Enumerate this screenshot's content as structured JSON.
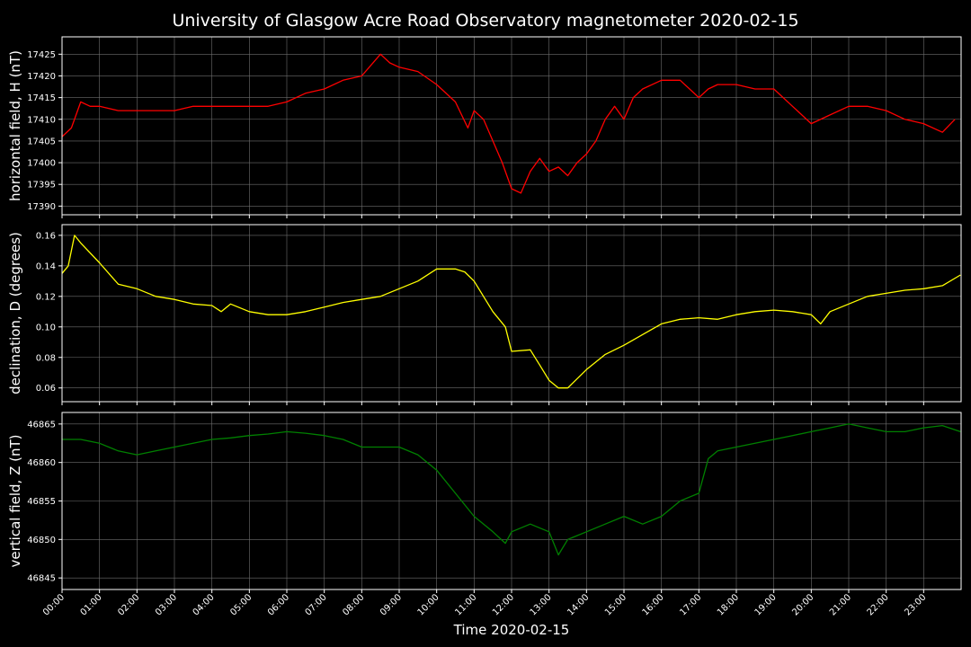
{
  "chart_data": {
    "title": "University of Glasgow Acre Road Observatory magnetometer 2020-02-15",
    "xlabel": "Time 2020-02-15",
    "x_ticks": [
      "00:00",
      "01:00",
      "02:00",
      "03:00",
      "04:00",
      "05:00",
      "06:00",
      "07:00",
      "08:00",
      "09:00",
      "10:00",
      "11:00",
      "12:00",
      "13:00",
      "14:00",
      "15:00",
      "16:00",
      "17:00",
      "18:00",
      "19:00",
      "20:00",
      "21:00",
      "22:00",
      "23:00"
    ],
    "xlim": [
      "00:00",
      "24:00"
    ],
    "grid": true,
    "panels": [
      {
        "type": "line",
        "ylabel": "horizontal field, H (nT)",
        "color": "#ff0000",
        "ylim": [
          17388,
          17429
        ],
        "yticks": [
          17390,
          17395,
          17400,
          17405,
          17410,
          17415,
          17420,
          17425
        ],
        "series": [
          {
            "x": [
              "00:00",
              "00:15",
              "00:30",
              "00:45",
              "01:00",
              "01:30",
              "02:00",
              "02:30",
              "03:00",
              "03:30",
              "04:00",
              "04:30",
              "05:00",
              "05:30",
              "06:00",
              "06:30",
              "07:00",
              "07:30",
              "08:00",
              "08:30",
              "08:45",
              "09:00",
              "09:30",
              "10:00",
              "10:30",
              "10:50",
              "11:00",
              "11:15",
              "11:30",
              "11:45",
              "12:00",
              "12:15",
              "12:30",
              "12:45",
              "13:00",
              "13:15",
              "13:30",
              "13:45",
              "14:00",
              "14:15",
              "14:30",
              "14:45",
              "15:00",
              "15:15",
              "15:30",
              "16:00",
              "16:30",
              "17:00",
              "17:15",
              "17:30",
              "18:00",
              "18:30",
              "19:00",
              "19:30",
              "20:00",
              "20:30",
              "21:00",
              "21:30",
              "22:00",
              "22:30",
              "23:00",
              "23:30",
              "23:50"
            ],
            "y": [
              17406,
              17408,
              17414,
              17413,
              17413,
              17412,
              17412,
              17412,
              17412,
              17413,
              17413,
              17413,
              17413,
              17413,
              17414,
              17416,
              17417,
              17419,
              17420,
              17425,
              17423,
              17422,
              17421,
              17418,
              17414,
              17408,
              17412,
              17410,
              17405,
              17400,
              17394,
              17393,
              17398,
              17401,
              17398,
              17399,
              17397,
              17400,
              17402,
              17405,
              17410,
              17413,
              17410,
              17415,
              17417,
              17419,
              17419,
              17415,
              17417,
              17418,
              17418,
              17417,
              17417,
              17413,
              17409,
              17411,
              17413,
              17413,
              17412,
              17410,
              17409,
              17407,
              17410
            ]
          }
        ]
      },
      {
        "type": "line",
        "ylabel": "declination, D (degrees)",
        "color": "#ffff00",
        "ylim": [
          0.051,
          0.167
        ],
        "yticks": [
          0.06,
          0.08,
          0.1,
          0.12,
          0.14,
          0.16
        ],
        "tick_labels": [
          "0.06",
          "0.08",
          "0.10",
          "0.12",
          "0.14",
          "0.16"
        ],
        "series": [
          {
            "x": [
              "00:00",
              "00:10",
              "00:20",
              "00:30",
              "01:00",
              "01:30",
              "02:00",
              "02:30",
              "03:00",
              "03:30",
              "04:00",
              "04:15",
              "04:30",
              "05:00",
              "05:30",
              "06:00",
              "06:30",
              "07:00",
              "07:30",
              "08:00",
              "08:30",
              "09:00",
              "09:30",
              "10:00",
              "10:30",
              "10:45",
              "11:00",
              "11:30",
              "11:50",
              "12:00",
              "12:30",
              "12:45",
              "13:00",
              "13:15",
              "13:30",
              "14:00",
              "14:30",
              "15:00",
              "15:30",
              "16:00",
              "16:30",
              "17:00",
              "17:30",
              "18:00",
              "18:30",
              "19:00",
              "19:30",
              "20:00",
              "20:15",
              "20:30",
              "21:00",
              "21:30",
              "22:00",
              "22:30",
              "23:00",
              "23:30",
              "23:59"
            ],
            "y": [
              0.135,
              0.14,
              0.16,
              0.155,
              0.142,
              0.128,
              0.125,
              0.12,
              0.118,
              0.115,
              0.114,
              0.11,
              0.115,
              0.11,
              0.108,
              0.108,
              0.11,
              0.113,
              0.116,
              0.118,
              0.12,
              0.125,
              0.13,
              0.138,
              0.138,
              0.136,
              0.13,
              0.11,
              0.1,
              0.084,
              0.085,
              0.075,
              0.065,
              0.06,
              0.06,
              0.072,
              0.082,
              0.088,
              0.095,
              0.102,
              0.105,
              0.106,
              0.105,
              0.108,
              0.11,
              0.111,
              0.11,
              0.108,
              0.102,
              0.11,
              0.115,
              0.12,
              0.122,
              0.124,
              0.125,
              0.127,
              0.134
            ]
          }
        ]
      },
      {
        "type": "line",
        "ylabel": "vertical field, Z (nT)",
        "color": "#008000",
        "ylim": [
          46843.5,
          46866.5
        ],
        "yticks": [
          46845,
          46850,
          46855,
          46860,
          46865
        ],
        "series": [
          {
            "x": [
              "00:00",
              "00:30",
              "01:00",
              "01:30",
              "02:00",
              "02:30",
              "03:00",
              "03:30",
              "04:00",
              "04:30",
              "05:00",
              "05:30",
              "06:00",
              "06:30",
              "07:00",
              "07:30",
              "08:00",
              "08:30",
              "09:00",
              "09:30",
              "10:00",
              "10:30",
              "11:00",
              "11:30",
              "11:50",
              "12:00",
              "12:30",
              "13:00",
              "13:15",
              "13:30",
              "14:00",
              "14:30",
              "15:00",
              "15:30",
              "16:00",
              "16:30",
              "17:00",
              "17:15",
              "17:30",
              "18:00",
              "18:30",
              "19:00",
              "19:30",
              "20:00",
              "20:30",
              "21:00",
              "21:30",
              "22:00",
              "22:30",
              "23:00",
              "23:30",
              "23:59"
            ],
            "y": [
              46863,
              46863,
              46862.5,
              46861.5,
              46861,
              46861.5,
              46862,
              46862.5,
              46863,
              46863.2,
              46863.5,
              46863.7,
              46864,
              46863.8,
              46863.5,
              46863,
              46862,
              46862,
              46862,
              46861,
              46859,
              46856,
              46853,
              46851,
              46849.5,
              46851,
              46852,
              46851,
              46848,
              46850,
              46851,
              46852,
              46853,
              46852,
              46853,
              46855,
              46856,
              46860.5,
              46861.5,
              46862,
              46862.5,
              46863,
              46863.5,
              46864,
              46864.5,
              46865,
              46864.5,
              46864,
              46864,
              46864.5,
              46864.8,
              46864
            ]
          }
        ]
      }
    ]
  }
}
